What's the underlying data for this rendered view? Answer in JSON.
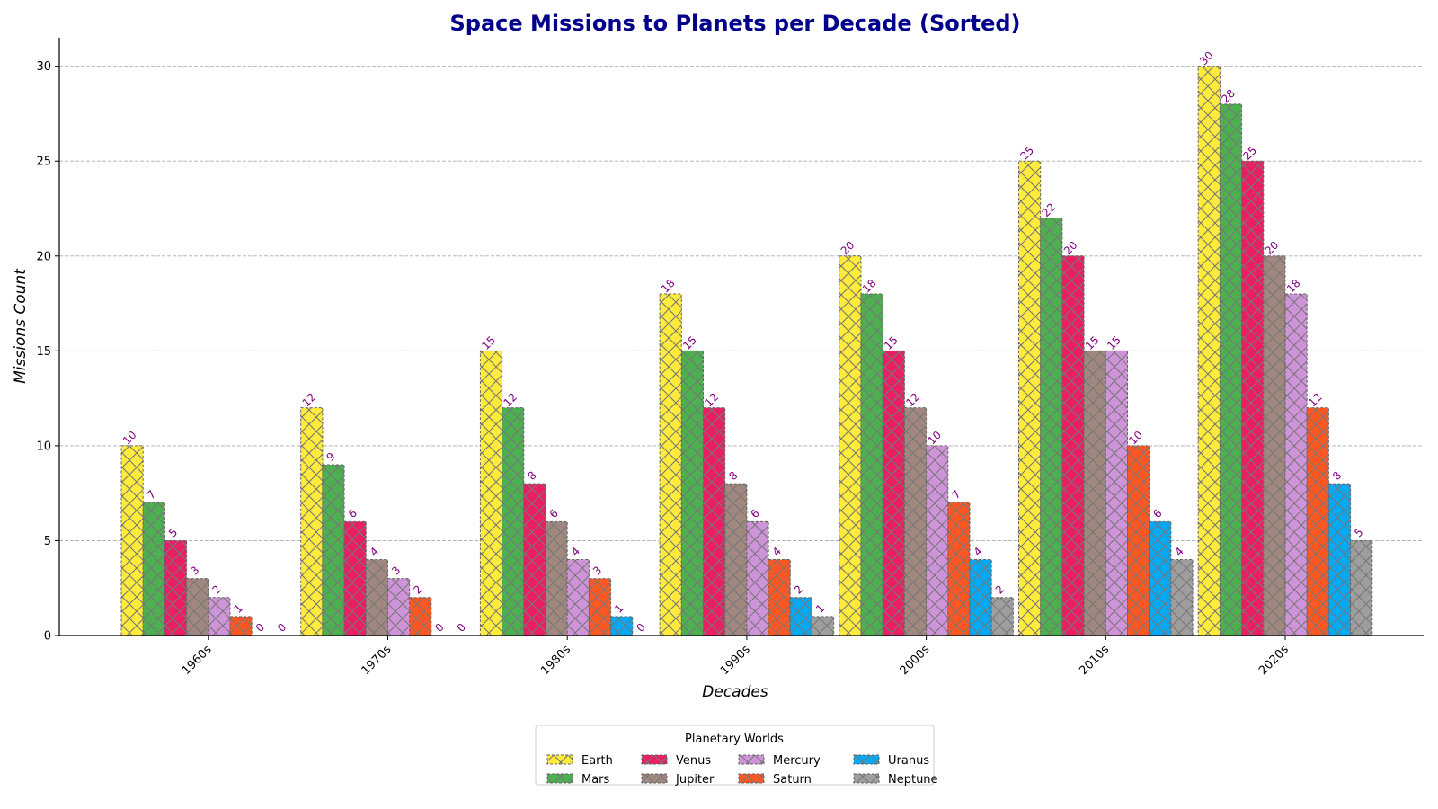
{
  "chart_data": {
    "type": "bar",
    "title": "Space Missions to Planets per Decade (Sorted)",
    "xlabel": "Decades",
    "ylabel": "Missions Count",
    "ylim": [
      0,
      31.5
    ],
    "yticks": [
      0,
      5,
      10,
      15,
      20,
      25,
      30
    ],
    "grid": "y-dashed",
    "legend": {
      "title": "Planetary Worlds",
      "placement": "bottom-center"
    },
    "categories": [
      "1960s",
      "1970s",
      "1980s",
      "1990s",
      "2000s",
      "2010s",
      "2020s"
    ],
    "series": [
      {
        "name": "Earth",
        "color": "#ffeb3b",
        "values": [
          10,
          12,
          15,
          18,
          20,
          25,
          30
        ]
      },
      {
        "name": "Mars",
        "color": "#4caf50",
        "values": [
          7,
          9,
          12,
          15,
          18,
          22,
          28
        ]
      },
      {
        "name": "Venus",
        "color": "#e91e63",
        "values": [
          5,
          6,
          8,
          12,
          15,
          20,
          25
        ]
      },
      {
        "name": "Jupiter",
        "color": "#a1887f",
        "values": [
          3,
          4,
          6,
          8,
          12,
          15,
          20
        ]
      },
      {
        "name": "Mercury",
        "color": "#ce93d8",
        "values": [
          2,
          3,
          4,
          6,
          10,
          15,
          18
        ]
      },
      {
        "name": "Saturn",
        "color": "#ff5722",
        "values": [
          1,
          2,
          3,
          4,
          7,
          10,
          12
        ]
      },
      {
        "name": "Uranus",
        "color": "#03a9f4",
        "values": [
          0,
          0,
          1,
          2,
          4,
          6,
          8
        ]
      },
      {
        "name": "Neptune",
        "color": "#9e9e9e",
        "values": [
          0,
          0,
          0,
          1,
          2,
          4,
          5
        ]
      }
    ]
  }
}
